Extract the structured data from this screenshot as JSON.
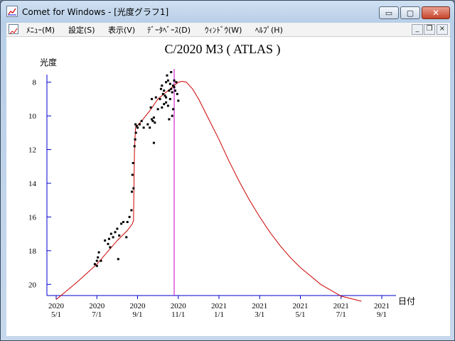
{
  "window": {
    "title": "Comet for Windows - [光度グラフ1]",
    "controls": {
      "minimize": "▭",
      "maximize": "▢",
      "close": "✕"
    }
  },
  "menu": {
    "items": [
      {
        "label": "ﾒﾆｭｰ(M)"
      },
      {
        "label": "設定(S)"
      },
      {
        "label": "表示(V)"
      },
      {
        "label": "ﾃﾞｰﾀﾍﾞｰｽ(D)"
      },
      {
        "label": "ｳｨﾝﾄﾞｳ(W)"
      },
      {
        "label": "ﾍﾙﾌﾟ(H)"
      }
    ],
    "mdi": {
      "minimize": "_",
      "restore": "❐",
      "close": "×"
    }
  },
  "chart_data": {
    "type": "scatter",
    "title": "C/2020 M3 ( ATLAS )",
    "ylabel": "光度",
    "xlabel": "日付",
    "y_ticks": [
      8,
      10,
      12,
      14,
      16,
      18,
      20
    ],
    "y_inverted": true,
    "ylim": [
      7.0,
      21.0
    ],
    "x_ticks": [
      {
        "year": "2020",
        "md": "5/1"
      },
      {
        "year": "2020",
        "md": "7/1"
      },
      {
        "year": "2020",
        "md": "9/1"
      },
      {
        "year": "2020",
        "md": "11/1"
      },
      {
        "year": "2021",
        "md": "1/1"
      },
      {
        "year": "2021",
        "md": "3/1"
      },
      {
        "year": "2021",
        "md": "5/1"
      },
      {
        "year": "2021",
        "md": "7/1"
      },
      {
        "year": "2021",
        "md": "9/1"
      }
    ],
    "x_unit": "months since 2020-05-01",
    "xlim": [
      0,
      16
    ],
    "current_date_marker": 5.8,
    "colors": {
      "axis": "#0000cc",
      "curve": "#cc0000",
      "marker": "#cc00cc",
      "points": "#000000"
    },
    "curve": [
      [
        0,
        20.9
      ],
      [
        1,
        19.9
      ],
      [
        2,
        18.8
      ],
      [
        2.5,
        18.1
      ],
      [
        3,
        17.4
      ],
      [
        3.5,
        16.8
      ],
      [
        3.75,
        16.4
      ],
      [
        3.8,
        16.2
      ],
      [
        3.82,
        14.5
      ],
      [
        3.85,
        12.0
      ],
      [
        3.9,
        10.7
      ],
      [
        4.2,
        10.3
      ],
      [
        4.6,
        9.7
      ],
      [
        5.0,
        9.0
      ],
      [
        5.4,
        8.6
      ],
      [
        5.8,
        8.2
      ],
      [
        6.0,
        8.0
      ],
      [
        6.2,
        7.95
      ],
      [
        6.4,
        8.0
      ],
      [
        6.7,
        8.4
      ],
      [
        7.0,
        9.0
      ],
      [
        7.5,
        10.2
      ],
      [
        8.0,
        11.4
      ],
      [
        8.5,
        12.7
      ],
      [
        9.0,
        13.9
      ],
      [
        9.5,
        15.0
      ],
      [
        10,
        16.0
      ],
      [
        10.5,
        16.9
      ],
      [
        11,
        17.7
      ],
      [
        11.5,
        18.4
      ],
      [
        12,
        19.0
      ],
      [
        13,
        20.0
      ],
      [
        14,
        20.7
      ],
      [
        15,
        21.0
      ]
    ],
    "points": [
      [
        1.9,
        18.8
      ],
      [
        2.0,
        18.6
      ],
      [
        2.05,
        18.4
      ],
      [
        2.1,
        18.1
      ],
      [
        2.0,
        18.9
      ],
      [
        2.2,
        18.6
      ],
      [
        2.4,
        17.4
      ],
      [
        2.55,
        17.6
      ],
      [
        2.6,
        17.3
      ],
      [
        2.7,
        17.0
      ],
      [
        2.65,
        17.8
      ],
      [
        2.8,
        17.2
      ],
      [
        2.9,
        16.9
      ],
      [
        3.0,
        16.7
      ],
      [
        3.1,
        17.1
      ],
      [
        3.05,
        18.5
      ],
      [
        3.2,
        16.4
      ],
      [
        3.3,
        16.3
      ],
      [
        3.5,
        16.3
      ],
      [
        3.45,
        17.2
      ],
      [
        3.6,
        16.0
      ],
      [
        3.7,
        15.6
      ],
      [
        3.72,
        14.5
      ],
      [
        3.75,
        13.5
      ],
      [
        3.78,
        12.8
      ],
      [
        3.8,
        14.3
      ],
      [
        3.85,
        11.8
      ],
      [
        3.88,
        11.4
      ],
      [
        3.9,
        10.5
      ],
      [
        3.92,
        11.0
      ],
      [
        3.95,
        10.6
      ],
      [
        4.0,
        10.7
      ],
      [
        4.1,
        10.5
      ],
      [
        4.2,
        10.3
      ],
      [
        4.3,
        10.7
      ],
      [
        4.5,
        10.5
      ],
      [
        4.6,
        10.7
      ],
      [
        4.65,
        9.5
      ],
      [
        4.7,
        10.2
      ],
      [
        4.75,
        10.3
      ],
      [
        4.8,
        10.1
      ],
      [
        4.85,
        10.4
      ],
      [
        4.7,
        9.0
      ],
      [
        4.9,
        8.9
      ],
      [
        4.8,
        11.6
      ],
      [
        5.0,
        9.6
      ],
      [
        5.1,
        9.0
      ],
      [
        5.15,
        8.4
      ],
      [
        5.2,
        8.2
      ],
      [
        5.25,
        8.7
      ],
      [
        5.3,
        9.3
      ],
      [
        5.35,
        8.8
      ],
      [
        5.4,
        8.0
      ],
      [
        5.4,
        9.2
      ],
      [
        5.45,
        7.6
      ],
      [
        5.5,
        7.9
      ],
      [
        5.55,
        8.5
      ],
      [
        5.55,
        10.2
      ],
      [
        5.6,
        8.1
      ],
      [
        5.6,
        9.0
      ],
      [
        5.65,
        7.4
      ],
      [
        5.65,
        8.4
      ],
      [
        5.7,
        8.6
      ],
      [
        5.7,
        10.0
      ],
      [
        5.75,
        8.2
      ],
      [
        5.75,
        9.6
      ],
      [
        5.8,
        7.9
      ],
      [
        5.8,
        8.3
      ],
      [
        5.85,
        8.5
      ],
      [
        5.9,
        8.0
      ],
      [
        5.95,
        8.7
      ],
      [
        6.0,
        9.1
      ],
      [
        5.4,
        8.9
      ],
      [
        5.5,
        9.4
      ],
      [
        5.3,
        8.5
      ],
      [
        5.2,
        9.5
      ]
    ]
  }
}
